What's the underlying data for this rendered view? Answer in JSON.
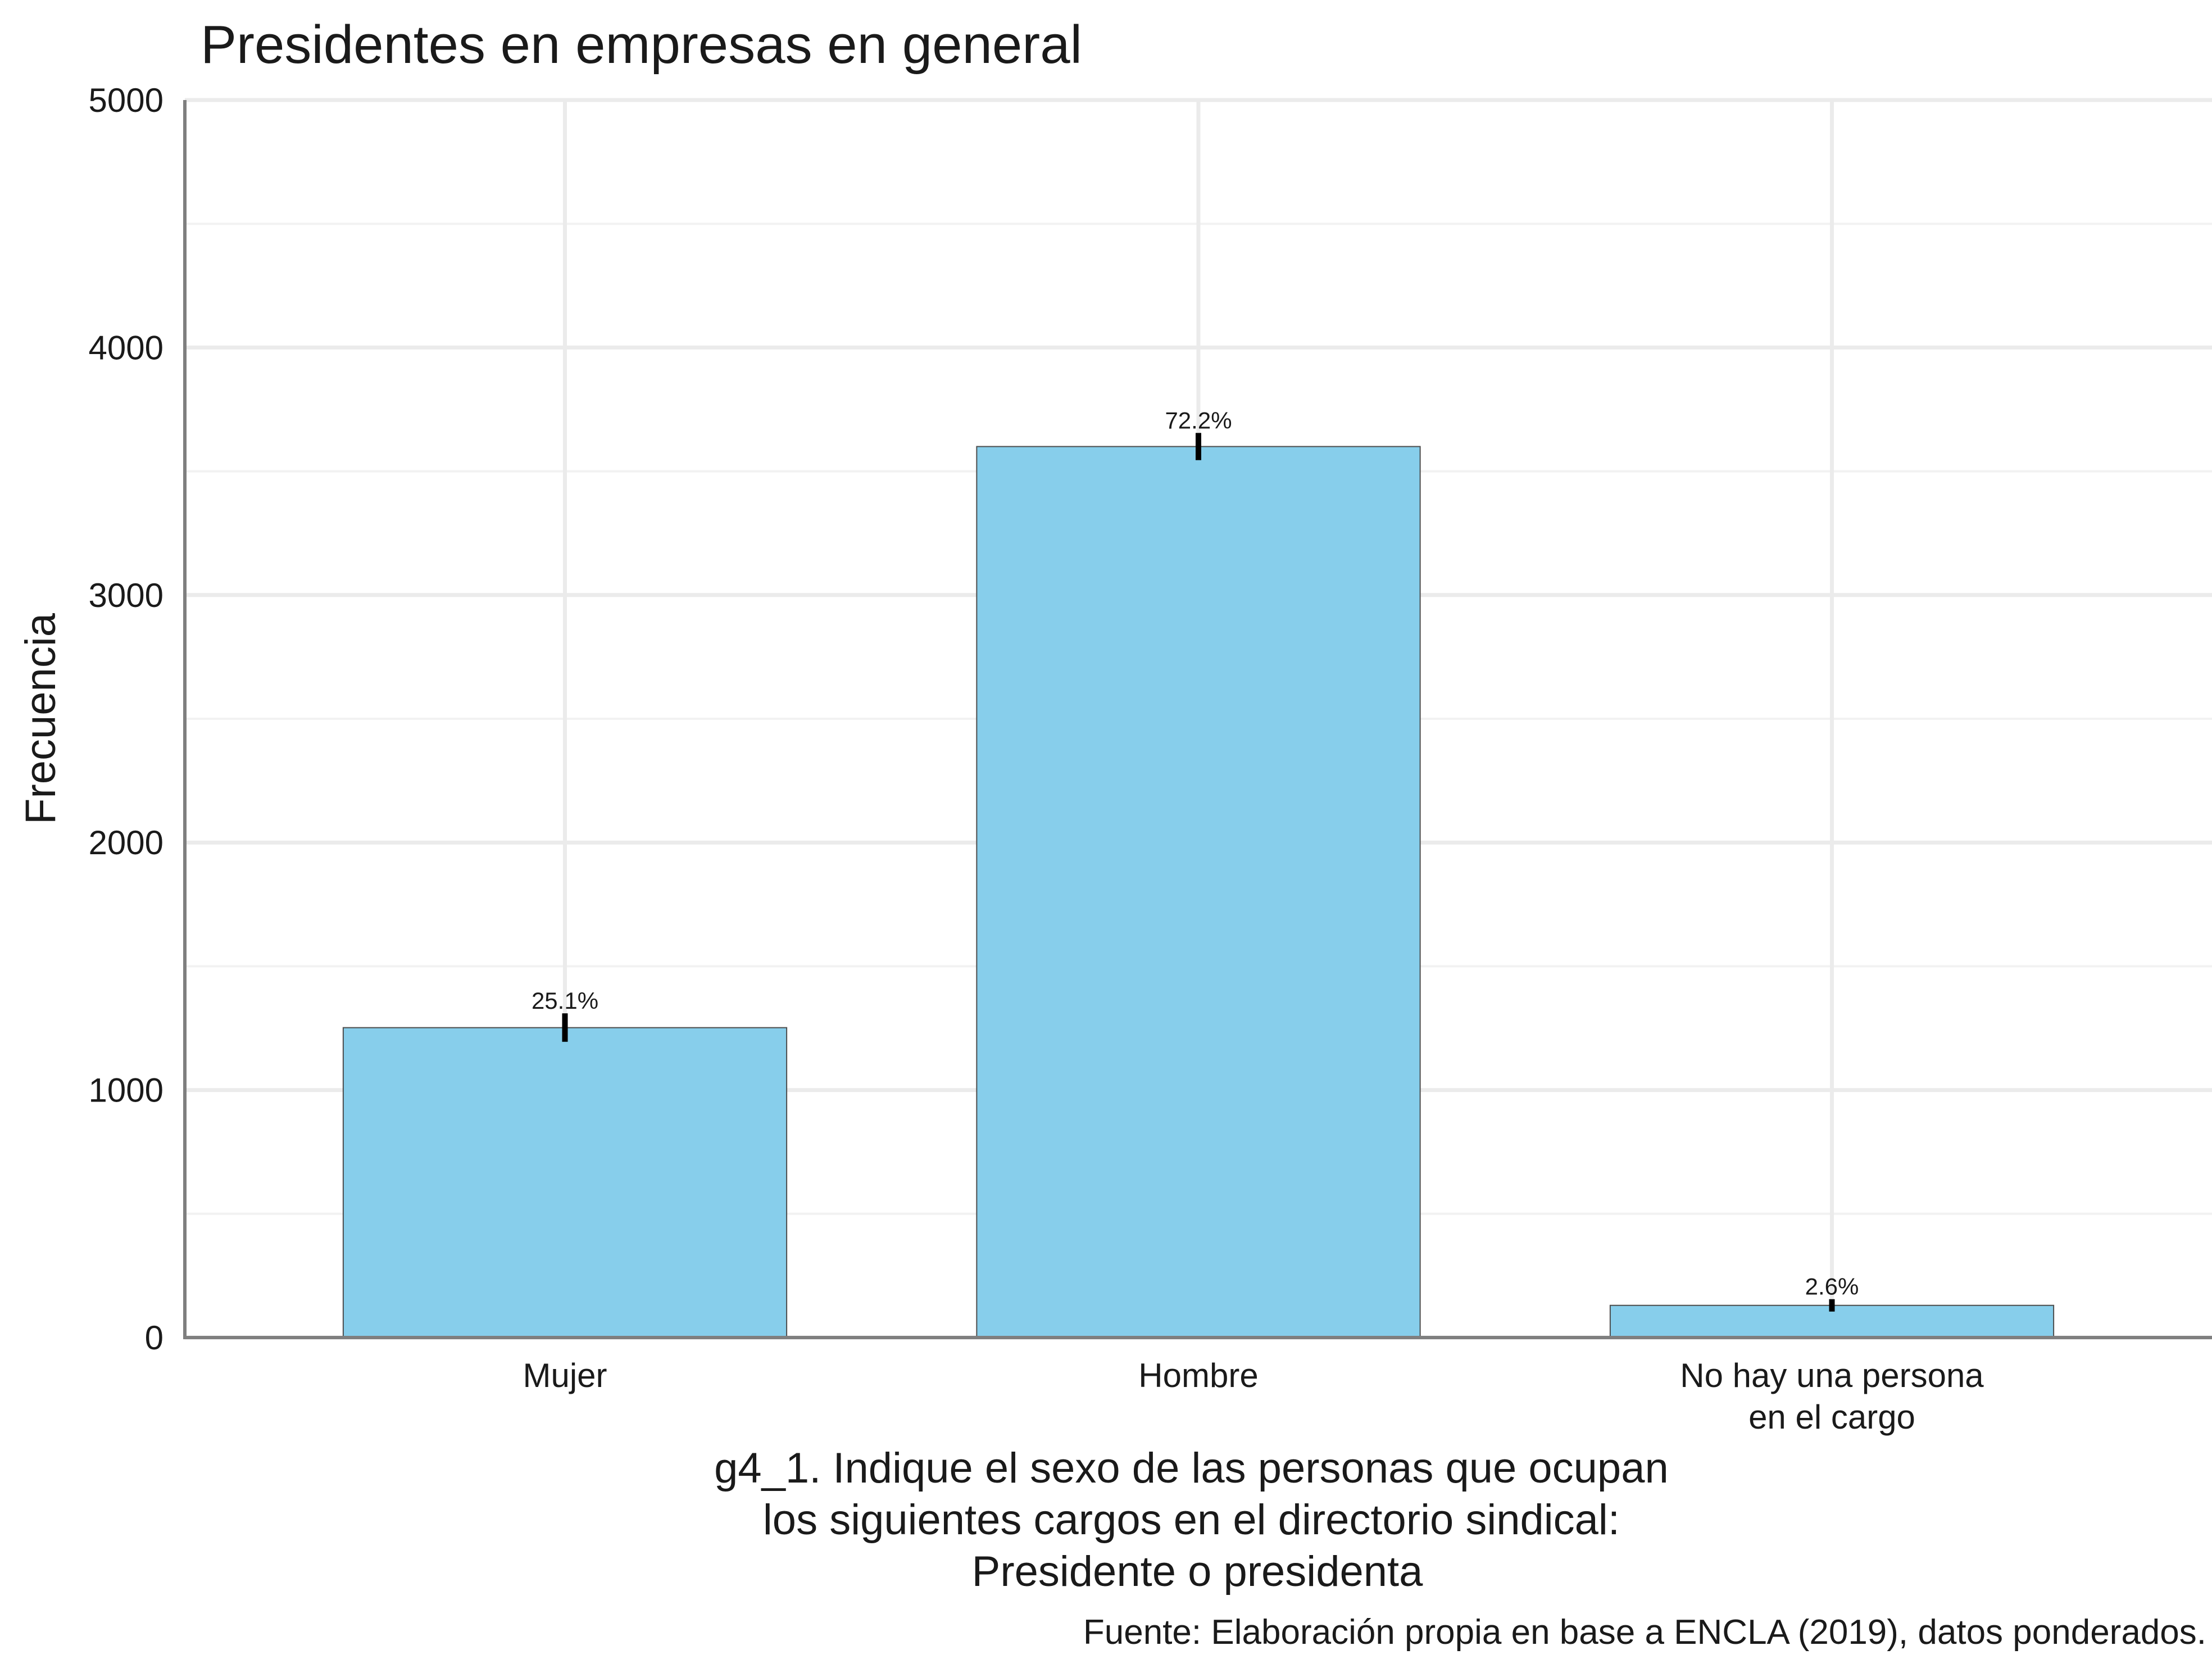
{
  "chart_data": {
    "type": "bar",
    "title": "Presidentes en empresas en general",
    "ylabel": "Frecuencia",
    "xlabel_lines": [
      "g4_1. Indique el sexo de las personas que ocupan",
      "los siguientes cargos en el directorio sindical:",
      "Presidente o presidenta"
    ],
    "caption": "Fuente: Elaboración propia en base a ENCLA (2019), datos ponderados.",
    "categories": [
      {
        "lines": [
          "Mujer"
        ]
      },
      {
        "lines": [
          "Hombre"
        ]
      },
      {
        "lines": [
          "No hay una persona",
          "en el cargo"
        ]
      }
    ],
    "values": [
      1252,
      3600,
      130
    ],
    "error_low": [
      1195,
      3545,
      105
    ],
    "error_high": [
      1310,
      3655,
      155
    ],
    "labels": [
      "25.1%",
      "72.2%",
      "2.6%"
    ],
    "ylim": [
      0,
      5000
    ],
    "yticks": [
      0,
      1000,
      2000,
      3000,
      4000,
      5000
    ],
    "ytick_labels": [
      "0",
      "1000",
      "2000",
      "3000",
      "4000",
      "5000"
    ],
    "grid": true,
    "colors": {
      "bar": "#87ceeb",
      "bar_border": "#4d4d4d",
      "errorbar": "#000000"
    }
  }
}
